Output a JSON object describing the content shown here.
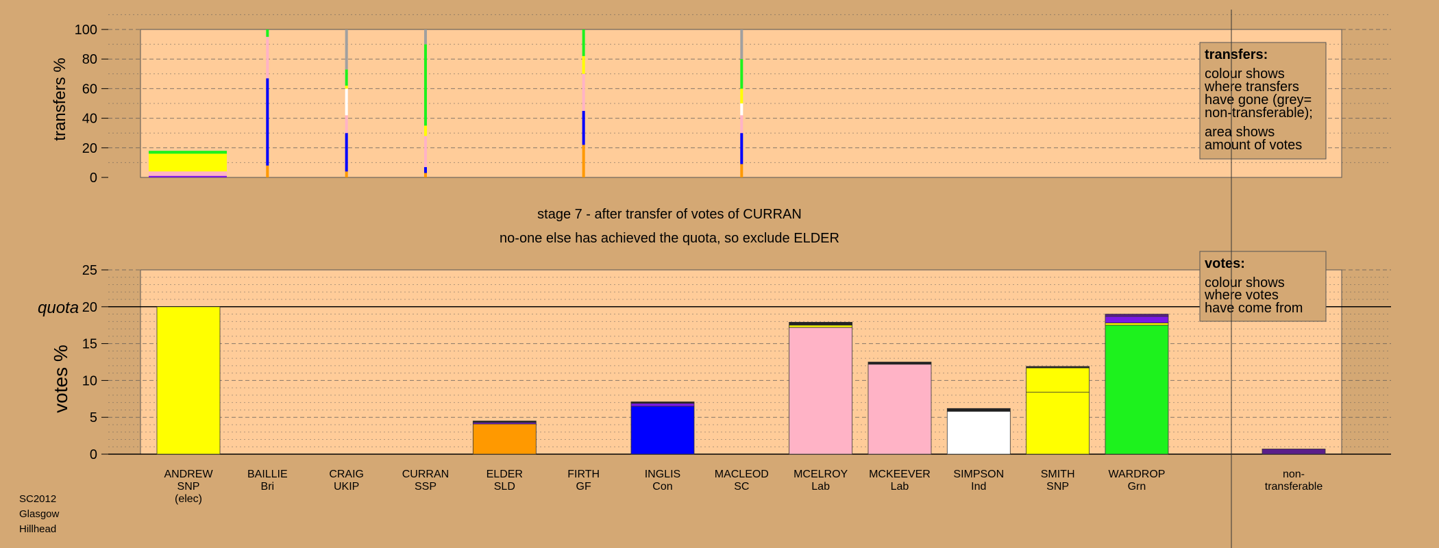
{
  "footer": {
    "lines": [
      "SC2012",
      "Glasgow",
      "Hillhead"
    ]
  },
  "colors": {
    "background": "#d4a874",
    "plot_bg": "#ffcc99",
    "SNP": "#ffff00",
    "Lab": "#ffb3c6",
    "Grn": "#1df21d",
    "Con": "#0000ff",
    "SLD": "#ff9900",
    "Ind": "#ffffff",
    "Bri": "#7b18e6",
    "non_transferable": "#a0a0a0"
  },
  "chart_data": [
    {
      "type": "bar",
      "title": "",
      "ylabel": "transfers %",
      "ylim": [
        0,
        100
      ],
      "yticks": [
        0,
        20,
        40,
        60,
        80,
        100
      ],
      "categories": [
        "ANDREW",
        "BAILLIE",
        "CRAIG",
        "CURRAN",
        "ELDER",
        "FIRTH",
        "INGLIS",
        "MACLEOD",
        "MCELROY",
        "MCKEEVER",
        "SIMPSON",
        "SMITH",
        "WARDROP"
      ],
      "transfers": [
        {
          "candidate": "ANDREW",
          "segments": [
            {
              "to": "Grn",
              "color": "#1df21d",
              "from": 16,
              "to_pct": 18
            },
            {
              "to": "SNP",
              "color": "#ffff00",
              "from": 4,
              "to_pct": 16
            },
            {
              "to": "Lab",
              "color": "#ffb3c6",
              "from": 1,
              "to_pct": 4
            },
            {
              "to": "Bri",
              "color": "#7b18e6",
              "from": 0,
              "to_pct": 1
            }
          ]
        },
        {
          "candidate": "BAILLIE",
          "segments": [
            {
              "to": "SLD",
              "color": "#ff9900",
              "from": 0,
              "to_pct": 8
            },
            {
              "to": "Con",
              "color": "#0000ff",
              "from": 8,
              "to_pct": 67
            },
            {
              "to": "Lab",
              "color": "#ffb3c6",
              "from": 67,
              "to_pct": 95
            },
            {
              "to": "Grn",
              "color": "#1df21d",
              "from": 95,
              "to_pct": 100
            }
          ]
        },
        {
          "candidate": "CRAIG",
          "segments": [
            {
              "to": "SLD",
              "color": "#ff9900",
              "from": 0,
              "to_pct": 4
            },
            {
              "to": "Con",
              "color": "#0000ff",
              "from": 4,
              "to_pct": 30
            },
            {
              "to": "Lab",
              "color": "#ffb3c6",
              "from": 30,
              "to_pct": 42
            },
            {
              "to": "Ind",
              "color": "#ffffff",
              "from": 42,
              "to_pct": 60
            },
            {
              "to": "SNP",
              "color": "#ffff00",
              "from": 60,
              "to_pct": 62
            },
            {
              "to": "Grn",
              "color": "#1df21d",
              "from": 62,
              "to_pct": 73
            },
            {
              "to": "non-transferable",
              "color": "#a0a0a0",
              "from": 73,
              "to_pct": 100
            }
          ]
        },
        {
          "candidate": "CURRAN",
          "segments": [
            {
              "to": "SLD",
              "color": "#ff9900",
              "from": 0,
              "to_pct": 3
            },
            {
              "to": "Con",
              "color": "#0000ff",
              "from": 3,
              "to_pct": 7
            },
            {
              "to": "Lab",
              "color": "#ffb3c6",
              "from": 7,
              "to_pct": 28
            },
            {
              "to": "SNP",
              "color": "#ffff00",
              "from": 28,
              "to_pct": 35
            },
            {
              "to": "Grn",
              "color": "#1df21d",
              "from": 35,
              "to_pct": 90
            },
            {
              "to": "non-transferable",
              "color": "#a0a0a0",
              "from": 90,
              "to_pct": 100
            }
          ]
        },
        {
          "candidate": "FIRTH",
          "segments": [
            {
              "to": "SLD",
              "color": "#ff9900",
              "from": 0,
              "to_pct": 22
            },
            {
              "to": "Con",
              "color": "#0000ff",
              "from": 22,
              "to_pct": 45
            },
            {
              "to": "Lab",
              "color": "#ffb3c6",
              "from": 45,
              "to_pct": 70
            },
            {
              "to": "SNP",
              "color": "#ffff00",
              "from": 70,
              "to_pct": 82
            },
            {
              "to": "Grn",
              "color": "#1df21d",
              "from": 82,
              "to_pct": 100
            }
          ]
        },
        {
          "candidate": "MACLEOD",
          "segments": [
            {
              "to": "SLD",
              "color": "#ff9900",
              "from": 0,
              "to_pct": 9
            },
            {
              "to": "Con",
              "color": "#0000ff",
              "from": 9,
              "to_pct": 30
            },
            {
              "to": "Lab",
              "color": "#ffb3c6",
              "from": 30,
              "to_pct": 42
            },
            {
              "to": "Ind",
              "color": "#ffffff",
              "from": 42,
              "to_pct": 50
            },
            {
              "to": "SNP",
              "color": "#ffff00",
              "from": 50,
              "to_pct": 60
            },
            {
              "to": "Grn",
              "color": "#1df21d",
              "from": 60,
              "to_pct": 80
            },
            {
              "to": "non-transferable",
              "color": "#a0a0a0",
              "from": 80,
              "to_pct": 100
            }
          ]
        }
      ],
      "legend": {
        "title": "transfers:",
        "lines": [
          "colour shows",
          "where transfers",
          "have gone (grey=",
          "non-transferable);",
          "area shows",
          "amount of votes"
        ]
      }
    },
    {
      "type": "bar",
      "subtitle_lines": [
        "stage 7 - after transfer of votes of CURRAN",
        "no-one else has achieved the quota, so exclude ELDER"
      ],
      "ylabel": "votes %",
      "ylim": [
        0,
        25
      ],
      "yticks": [
        0,
        5,
        10,
        15,
        20,
        25
      ],
      "quota": 20,
      "quota_label": "quota",
      "categories": [
        {
          "name": "ANDREW",
          "party": "SNP",
          "note": "(elec)"
        },
        {
          "name": "BAILLIE",
          "party": "Bri",
          "note": ""
        },
        {
          "name": "CRAIG",
          "party": "UKIP",
          "note": ""
        },
        {
          "name": "CURRAN",
          "party": "SSP",
          "note": ""
        },
        {
          "name": "ELDER",
          "party": "SLD",
          "note": ""
        },
        {
          "name": "FIRTH",
          "party": "GF",
          "note": ""
        },
        {
          "name": "INGLIS",
          "party": "Con",
          "note": ""
        },
        {
          "name": "MACLEOD",
          "party": "SC",
          "note": ""
        },
        {
          "name": "MCELROY",
          "party": "Lab",
          "note": ""
        },
        {
          "name": "MCKEEVER",
          "party": "Lab",
          "note": ""
        },
        {
          "name": "SIMPSON",
          "party": "Ind",
          "note": ""
        },
        {
          "name": "SMITH",
          "party": "SNP",
          "note": ""
        },
        {
          "name": "WARDROP",
          "party": "Grn",
          "note": ""
        }
      ],
      "nontransferable_label": [
        "non-",
        "transferable"
      ],
      "nontransferable_value": 0.7,
      "nontransferable_color": "#5a1e8a",
      "series": [
        {
          "candidate": "ANDREW",
          "segments": [
            {
              "color": "#ffff00",
              "value": 20.0
            }
          ]
        },
        {
          "candidate": "BAILLIE",
          "segments": []
        },
        {
          "candidate": "CRAIG",
          "segments": []
        },
        {
          "candidate": "CURRAN",
          "segments": []
        },
        {
          "candidate": "ELDER",
          "segments": [
            {
              "color": "#ff9900",
              "value": 4.1
            },
            {
              "color": "#7b18e6",
              "value": 0.2
            },
            {
              "color": "#222222",
              "value": 0.2
            }
          ]
        },
        {
          "candidate": "FIRTH",
          "segments": []
        },
        {
          "candidate": "INGLIS",
          "segments": [
            {
              "color": "#0000ff",
              "value": 6.5
            },
            {
              "color": "#7b18e6",
              "value": 0.4
            },
            {
              "color": "#222222",
              "value": 0.2
            }
          ]
        },
        {
          "candidate": "MACLEOD",
          "segments": []
        },
        {
          "candidate": "MCELROY",
          "segments": [
            {
              "color": "#ffb3c6",
              "value": 17.2
            },
            {
              "color": "#ffff00",
              "value": 0.3
            },
            {
              "color": "#222222",
              "value": 0.4
            }
          ]
        },
        {
          "candidate": "MCKEEVER",
          "segments": [
            {
              "color": "#ffb3c6",
              "value": 12.2
            },
            {
              "color": "#222222",
              "value": 0.3
            }
          ]
        },
        {
          "candidate": "SIMPSON",
          "segments": [
            {
              "color": "#ffffff",
              "value": 5.8
            },
            {
              "color": "#222222",
              "value": 0.4
            }
          ]
        },
        {
          "candidate": "SMITH",
          "segments": [
            {
              "color": "#ffff00",
              "value": 8.4
            },
            {
              "color": "#ffff00",
              "value": 3.3
            },
            {
              "color": "#222222",
              "value": 0.2
            }
          ]
        },
        {
          "candidate": "WARDROP",
          "segments": [
            {
              "color": "#1df21d",
              "value": 17.5
            },
            {
              "color": "#ffff00",
              "value": 0.3
            },
            {
              "color": "#7b18e6",
              "value": 0.9
            },
            {
              "color": "#5a1e8a",
              "value": 0.3
            }
          ]
        }
      ],
      "legend": {
        "title": "votes:",
        "lines": [
          "colour shows",
          "where votes",
          "have come from"
        ]
      }
    }
  ]
}
